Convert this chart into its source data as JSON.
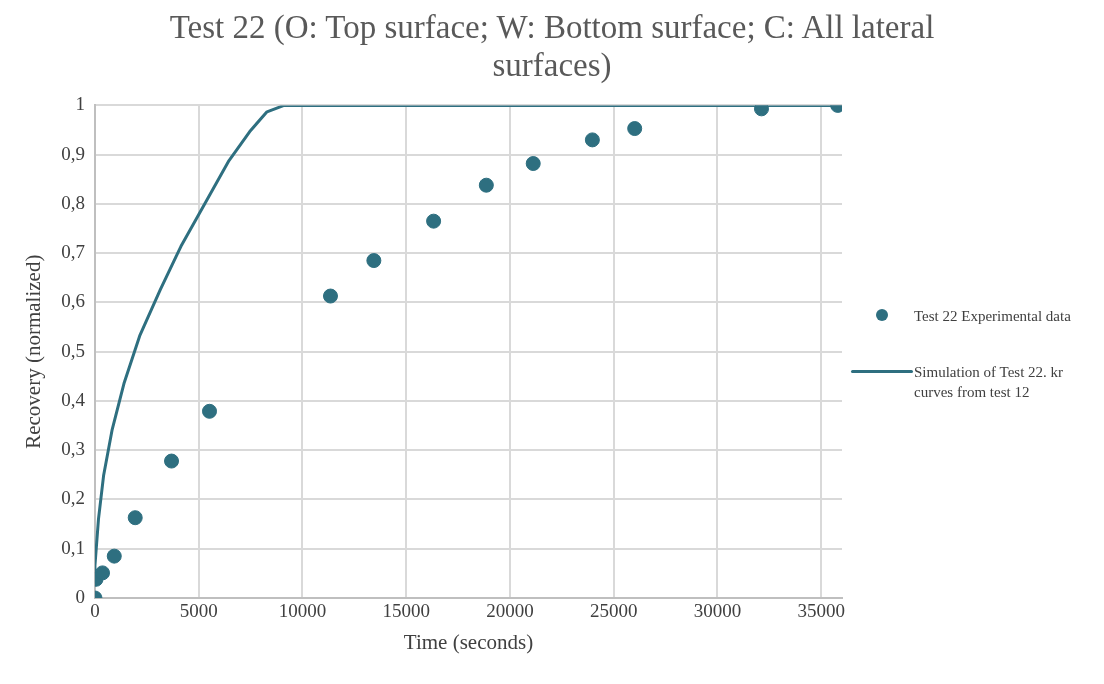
{
  "chart_data": {
    "type": "scatter",
    "title": "Test 22 (O: Top surface; W: Bottom surface; C: All lateral surfaces)",
    "xlabel": "Time (seconds)",
    "ylabel": "Recovery (normalized)",
    "series": [
      {
        "name": "Test 22 Experimental data",
        "color": "#2e6f80",
        "marker": "circle",
        "x": [
          0,
          50,
          365,
          930,
          1940,
          3690,
          5520,
          11350,
          13440,
          16320,
          18860,
          21120,
          23970,
          26010,
          32120,
          35790
        ],
        "values": [
          0,
          0.038,
          0.051,
          0.085,
          0.163,
          0.278,
          0.379,
          0.613,
          0.685,
          0.765,
          0.838,
          0.882,
          0.93,
          0.953,
          0.993,
          1
        ]
      },
      {
        "name": "Simulation of  Test 22. kr curves from test 12",
        "type": "line",
        "color": "#2e6f80",
        "marker": "none",
        "line_style": "solid",
        "x": [
          0,
          0,
          170,
          415,
          830,
          1410,
          2155,
          3150,
          4145,
          5300,
          6460,
          7460,
          8290,
          9115,
          36000
        ],
        "values": [
          0.03,
          0.066,
          0.16,
          0.248,
          0.342,
          0.437,
          0.532,
          0.626,
          0.714,
          0.801,
          0.888,
          0.947,
          0.987,
          1,
          1
        ]
      }
    ],
    "xlim": [
      0,
      36000
    ],
    "xticks": [
      0,
      5000,
      10000,
      15000,
      20000,
      25000,
      30000,
      35000
    ],
    "ylim": [
      0,
      1
    ],
    "yticks": [
      0,
      {
        "value": 0.1,
        "label": "0,1"
      },
      {
        "value": 0.2,
        "label": "0,2"
      },
      {
        "value": 0.3,
        "label": "0,3"
      },
      {
        "value": 0.4,
        "label": "0,4"
      },
      {
        "value": 0.5,
        "label": "0,5"
      },
      {
        "value": 0.6,
        "label": "0,6"
      },
      {
        "value": 0.7,
        "label": "0,7"
      },
      {
        "value": 0.8,
        "label": "0,8"
      },
      {
        "value": 0.9,
        "label": "0,9"
      },
      1
    ],
    "grid": true,
    "legend": "right"
  }
}
